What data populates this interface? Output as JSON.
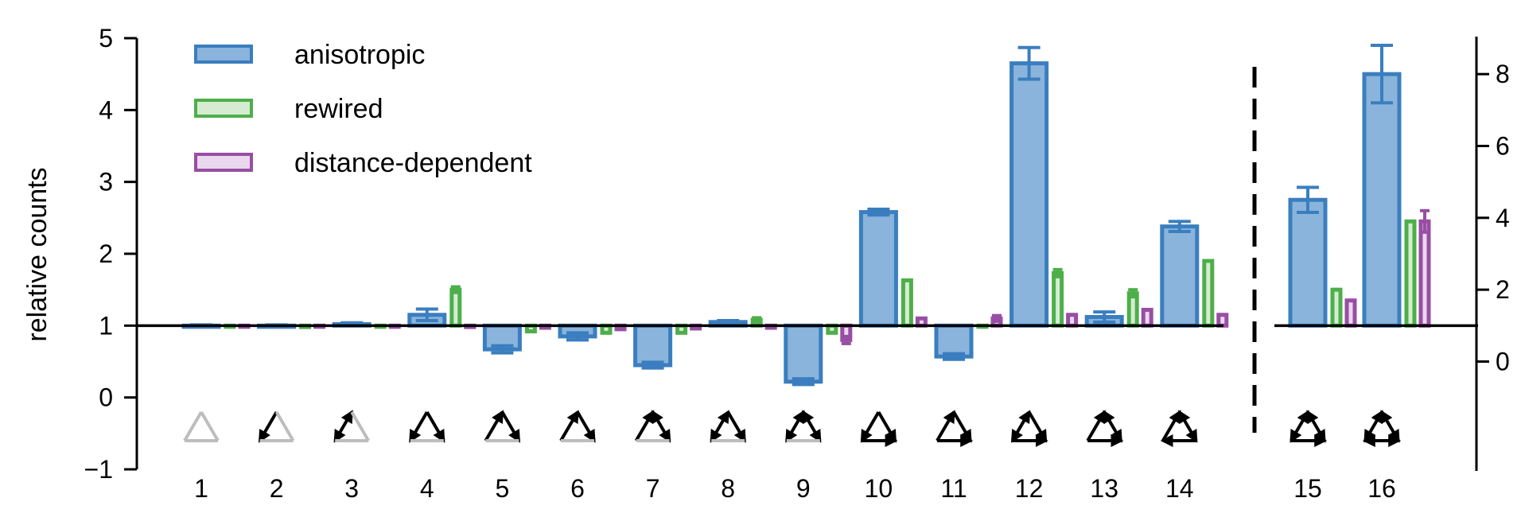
{
  "chart_data": {
    "type": "bar",
    "ylabel": "relative counts",
    "left_axis": {
      "ylim": [
        -1,
        5
      ],
      "ticks": [
        -1,
        0,
        1,
        2,
        3,
        4,
        5
      ],
      "tick_labels": [
        "−1",
        "0",
        "1",
        "2",
        "3",
        "4",
        "5"
      ],
      "baseline": 1
    },
    "right_axis": {
      "ylim": [
        -3.0,
        9.0
      ],
      "ticks": [
        0,
        2,
        4,
        6,
        8
      ],
      "tick_labels": [
        "0",
        "2",
        "4",
        "6",
        "8"
      ],
      "baseline": 1
    },
    "categories": [
      "1",
      "2",
      "3",
      "4",
      "5",
      "6",
      "7",
      "8",
      "9",
      "10",
      "11",
      "12",
      "13",
      "14",
      "15",
      "16"
    ],
    "right_axis_categories": [
      "15",
      "16"
    ],
    "colors": {
      "anisotropic": {
        "stroke": "#3a7ebf",
        "fill": "#8ab4db"
      },
      "rewired": {
        "stroke": "#4daf4a",
        "fill": "#d6ecd2"
      },
      "distance-dependent": {
        "stroke": "#984ea3",
        "fill": "#ead8ee"
      }
    },
    "series": [
      {
        "name": "anisotropic",
        "values": [
          1.0,
          1.0,
          1.02,
          1.15,
          0.67,
          0.85,
          0.45,
          1.05,
          0.22,
          2.58,
          0.57,
          4.65,
          1.12,
          2.38,
          4.5,
          8.0
        ],
        "errors": [
          0.01,
          0.01,
          0.02,
          0.08,
          0.05,
          0.05,
          0.04,
          0.02,
          0.04,
          0.04,
          0.04,
          0.22,
          0.07,
          0.07,
          0.35,
          0.8
        ]
      },
      {
        "name": "rewired",
        "values": [
          1.0,
          0.98,
          0.99,
          1.5,
          0.92,
          0.9,
          0.9,
          1.08,
          0.9,
          1.63,
          1.0,
          1.73,
          1.45,
          1.9,
          2.0,
          3.9
        ],
        "errors": [
          0,
          0,
          0,
          0.04,
          0,
          0,
          0,
          0.03,
          0,
          0,
          0,
          0.05,
          0.05,
          0,
          0,
          0
        ]
      },
      {
        "name": "distance-dependent",
        "values": [
          1.0,
          1.0,
          1.0,
          0.98,
          0.97,
          0.95,
          0.96,
          0.97,
          0.8,
          1.1,
          1.1,
          1.15,
          1.22,
          1.15,
          1.7,
          3.9
        ],
        "errors": [
          0,
          0,
          0,
          0,
          0,
          0,
          0,
          0,
          0.05,
          0,
          0.04,
          0,
          0,
          0,
          0,
          0.3
        ]
      }
    ],
    "legend": {
      "position": "top-left",
      "entries": [
        "anisotropic",
        "rewired",
        "distance-dependent"
      ]
    },
    "triad_motifs": [
      {
        "bottom": "none",
        "left": "none",
        "right": "none"
      },
      {
        "bottom": "none",
        "left": "down",
        "right": "none"
      },
      {
        "bottom": "none",
        "left": "both",
        "right": "none"
      },
      {
        "bottom": "none",
        "left": "down",
        "right": "down"
      },
      {
        "bottom": "none",
        "left": "up",
        "right": "down"
      },
      {
        "bottom": "none",
        "left": "up",
        "right": "down"
      },
      {
        "bottom": "none",
        "left": "up",
        "right": "both"
      },
      {
        "bottom": "none",
        "left": "both",
        "right": "down"
      },
      {
        "bottom": "none",
        "left": "both",
        "right": "both"
      },
      {
        "bottom": "right",
        "left": "down",
        "right": "down"
      },
      {
        "bottom": "right",
        "left": "up",
        "right": "down"
      },
      {
        "bottom": "right",
        "left": "both",
        "right": "down"
      },
      {
        "bottom": "right",
        "left": "up",
        "right": "both"
      },
      {
        "bottom": "left",
        "left": "up",
        "right": "both"
      },
      {
        "bottom": "right",
        "left": "both",
        "right": "both"
      },
      {
        "bottom": "both",
        "left": "both",
        "right": "both"
      }
    ],
    "grid": false
  }
}
